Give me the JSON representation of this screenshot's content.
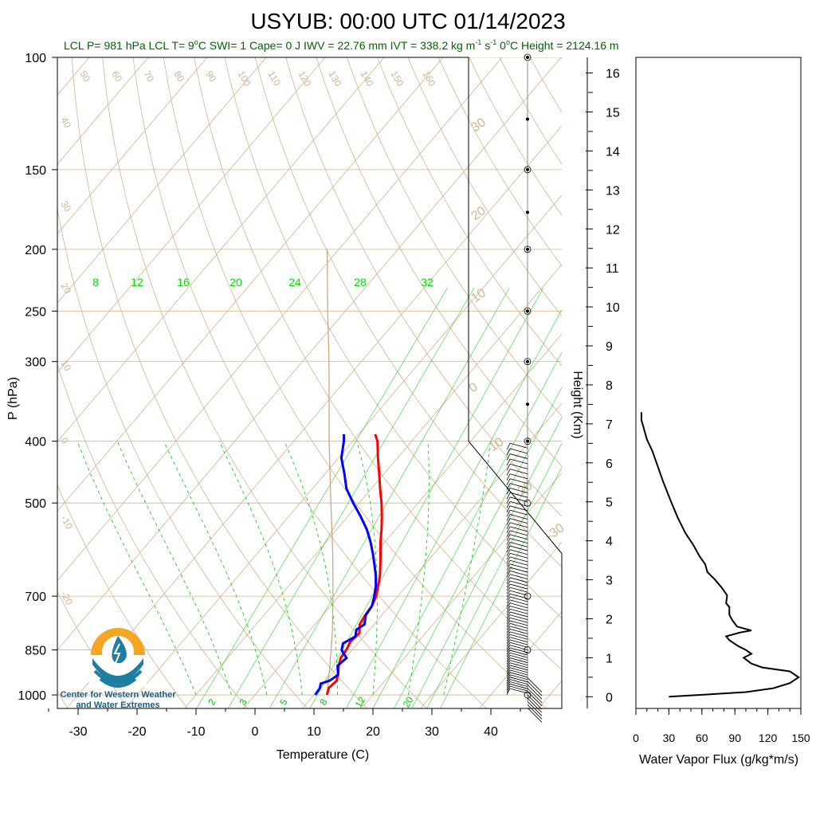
{
  "title": "USYUB: 00:00 UTC 01/14/2023",
  "subtitle": {
    "lcl_p": "LCL P= 981 hPa",
    "lcl_t_prefix": "LCL T= 9",
    "lcl_t_suffix": "C",
    "swi": "SWI= 1",
    "cape": "Cape= 0 J",
    "iwv": "IWV = 22.76 mm",
    "ivt_prefix": "IVT = 338.2 kg m",
    "ivt_exp1": "-1",
    "ivt_mid": " s",
    "ivt_exp2": "-1",
    "zero_prefix": "0",
    "zero_suffix": "C Height = 2124.16 m"
  },
  "colors": {
    "temperature": "#ff0000",
    "dewpoint": "#0000ff",
    "isotherm": "#d2b48c",
    "mixing_ratio": "#00c800",
    "moist_adiabat": "#00c800",
    "flux": "#000000",
    "subtitle": "#006400",
    "logo_orange": "#f5a623",
    "logo_blue": "#1e7ea1"
  },
  "logo": {
    "line1": "Center for Western Weather",
    "line2": "and Water Extremes",
    "icon": "water-drop-lightning-icon"
  },
  "chart_data": [
    {
      "type": "line",
      "name": "skew-t",
      "xlabel": "Temperature (C)",
      "ylabel": "P (hPa)",
      "x_ticks": [
        -30,
        -20,
        -10,
        0,
        10,
        20,
        30,
        40
      ],
      "y_ticks": [
        100,
        150,
        200,
        250,
        300,
        400,
        500,
        700,
        850,
        1000
      ],
      "y_scale": "log-reversed",
      "ylim": [
        1050,
        100
      ],
      "mixing_ratio_top_labels": [
        "8",
        "12",
        "16",
        "20",
        "24",
        "28",
        "32"
      ],
      "mixing_ratio_bottom_labels": [
        "2",
        "3",
        "5",
        "8",
        "12",
        "20"
      ],
      "isotherm_labels": [
        "30",
        "20",
        "10",
        "0",
        "-10",
        "-20",
        "-30",
        "-40"
      ],
      "isotherm_labels_left": [
        "40",
        "30",
        "20",
        "10",
        "0",
        "-10",
        "-20"
      ],
      "adiabat_top_labels": [
        "50",
        "60",
        "70",
        "80",
        "90",
        "100",
        "110",
        "120",
        "130",
        "140",
        "150",
        "160"
      ],
      "series": [
        {
          "name": "Temperature",
          "points": [
            [
              12.2,
              1000
            ],
            [
              11.5,
              975
            ],
            [
              11.8,
              950
            ],
            [
              11.0,
              925
            ],
            [
              10.0,
              900
            ],
            [
              9.2,
              875
            ],
            [
              9.0,
              850
            ],
            [
              8.5,
              825
            ],
            [
              8.8,
              800
            ],
            [
              7.6,
              775
            ],
            [
              7.2,
              750
            ],
            [
              7.0,
              725
            ],
            [
              6.3,
              700
            ],
            [
              5.2,
              675
            ],
            [
              4.0,
              650
            ],
            [
              2.5,
              625
            ],
            [
              0.9,
              600
            ],
            [
              -0.8,
              575
            ],
            [
              -2.4,
              550
            ],
            [
              -4.2,
              525
            ],
            [
              -6.2,
              500
            ],
            [
              -8.5,
              475
            ],
            [
              -10.8,
              450
            ],
            [
              -13.3,
              425
            ],
            [
              -15.8,
              400
            ],
            [
              -17.2,
              390
            ]
          ]
        },
        {
          "name": "Dewpoint",
          "points": [
            [
              10.2,
              1000
            ],
            [
              10.0,
              975
            ],
            [
              9.5,
              960
            ],
            [
              10.6,
              950
            ],
            [
              11.2,
              930
            ],
            [
              9.8,
              900
            ],
            [
              10.2,
              875
            ],
            [
              8.2,
              850
            ],
            [
              7.5,
              830
            ],
            [
              8.6,
              810
            ],
            [
              7.8,
              790
            ],
            [
              8.4,
              775
            ],
            [
              7.3,
              750
            ],
            [
              7.0,
              725
            ],
            [
              6.0,
              700
            ],
            [
              4.8,
              675
            ],
            [
              3.3,
              650
            ],
            [
              1.5,
              625
            ],
            [
              -0.4,
              600
            ],
            [
              -2.5,
              575
            ],
            [
              -4.9,
              550
            ],
            [
              -7.8,
              525
            ],
            [
              -11.0,
              500
            ],
            [
              -14.2,
              475
            ],
            [
              -16.7,
              450
            ],
            [
              -19.5,
              425
            ],
            [
              -21.5,
              400
            ],
            [
              -22.5,
              390
            ]
          ]
        }
      ],
      "dry_adiabat_parcel": [
        [
          12.2,
          1000
        ],
        [
          8.5,
          900
        ],
        [
          4.2,
          800
        ],
        [
          -1.0,
          700
        ],
        [
          -7.2,
          600
        ],
        [
          -14.8,
          500
        ],
        [
          -24.0,
          400
        ],
        [
          -35.5,
          300
        ],
        [
          -43.0,
          250
        ],
        [
          -52.0,
          200
        ]
      ]
    },
    {
      "type": "line",
      "name": "wind-profile",
      "description_levels_hpa": [
        100,
        125,
        150,
        175,
        200,
        250,
        300,
        350,
        400,
        500,
        600,
        700,
        850,
        925,
        1000
      ]
    },
    {
      "type": "line",
      "name": "water-vapor-flux",
      "xlabel": "Water Vapor Flux (g/kg*m/s)",
      "ylabel": "Height (Km)",
      "x_ticks": [
        0,
        30,
        60,
        90,
        120,
        150
      ],
      "y_ticks": [
        0,
        1,
        2,
        3,
        4,
        5,
        6,
        7,
        8,
        9,
        10,
        11,
        12,
        13,
        14,
        15,
        16
      ],
      "xlim": [
        0,
        150
      ],
      "ylim": [
        -0.3,
        16.4
      ],
      "points": [
        [
          30,
          0.0
        ],
        [
          60,
          0.05
        ],
        [
          100,
          0.12
        ],
        [
          125,
          0.22
        ],
        [
          140,
          0.35
        ],
        [
          148,
          0.5
        ],
        [
          140,
          0.65
        ],
        [
          115,
          0.75
        ],
        [
          105,
          0.85
        ],
        [
          98,
          1.0
        ],
        [
          105,
          1.1
        ],
        [
          100,
          1.2
        ],
        [
          93,
          1.3
        ],
        [
          85,
          1.45
        ],
        [
          82,
          1.55
        ],
        [
          95,
          1.65
        ],
        [
          105,
          1.7
        ],
        [
          92,
          1.8
        ],
        [
          88,
          1.95
        ],
        [
          85,
          2.1
        ],
        [
          85,
          2.3
        ],
        [
          82,
          2.4
        ],
        [
          83,
          2.6
        ],
        [
          78,
          2.8
        ],
        [
          72,
          3.0
        ],
        [
          65,
          3.2
        ],
        [
          63,
          3.4
        ],
        [
          58,
          3.6
        ],
        [
          52,
          3.9
        ],
        [
          45,
          4.2
        ],
        [
          38,
          4.6
        ],
        [
          32,
          5.0
        ],
        [
          25,
          5.5
        ],
        [
          20,
          5.9
        ],
        [
          15,
          6.3
        ],
        [
          10,
          6.6
        ],
        [
          7,
          6.9
        ],
        [
          5,
          7.1
        ],
        [
          5,
          7.3
        ]
      ]
    }
  ]
}
